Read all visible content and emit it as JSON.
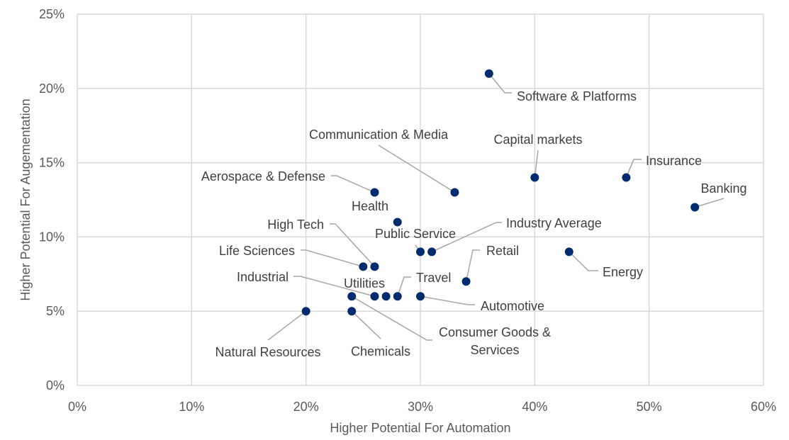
{
  "chart_data": {
    "type": "scatter",
    "title": "",
    "xlabel": "Higher Potential For Automation",
    "ylabel": "Higher Potential For Augementation",
    "xlim": [
      0,
      60
    ],
    "ylim": [
      0,
      25
    ],
    "x_ticks": [
      "0%",
      "10%",
      "20%",
      "30%",
      "40%",
      "50%",
      "60%"
    ],
    "y_ticks": [
      "0%",
      "5%",
      "10%",
      "15%",
      "20%",
      "25%"
    ],
    "grid": true,
    "marker_color": "#002b6e",
    "points": [
      {
        "label": "Software & Platforms",
        "x": 36,
        "y": 21
      },
      {
        "label": "Communication & Media",
        "x": 33,
        "y": 13
      },
      {
        "label": "Capital markets",
        "x": 40,
        "y": 14
      },
      {
        "label": "Insurance",
        "x": 48,
        "y": 14
      },
      {
        "label": "Banking",
        "x": 54,
        "y": 12
      },
      {
        "label": "Aerospace & Defense",
        "x": 26,
        "y": 13
      },
      {
        "label": "Health",
        "x": 28,
        "y": 11
      },
      {
        "label": "Public Service",
        "x": 30,
        "y": 9
      },
      {
        "label": "Industry Average",
        "x": 31,
        "y": 9
      },
      {
        "label": "High Tech",
        "x": 26,
        "y": 8
      },
      {
        "label": "Life Sciences",
        "x": 25,
        "y": 8
      },
      {
        "label": "Retail",
        "x": 34,
        "y": 7
      },
      {
        "label": "Energy",
        "x": 43,
        "y": 9
      },
      {
        "label": "Industrial",
        "x": 26,
        "y": 6
      },
      {
        "label": "Utilities",
        "x": 27,
        "y": 6
      },
      {
        "label": "Travel",
        "x": 28,
        "y": 6
      },
      {
        "label": "Automotive",
        "x": 30,
        "y": 6
      },
      {
        "label": "Consumer Goods & Services",
        "x": 24,
        "y": 6
      },
      {
        "label": "Natural Resources",
        "x": 20,
        "y": 5
      },
      {
        "label": "Chemicals",
        "x": 24,
        "y": 5
      }
    ]
  }
}
